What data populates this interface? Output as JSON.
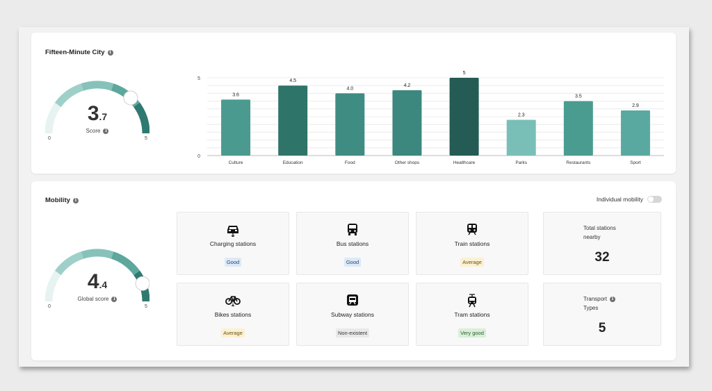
{
  "fifteen": {
    "title": "Fifteen-Minute City",
    "score_int": "3",
    "score_dec": ".7",
    "score": 3.7,
    "score_label": "Score",
    "min_label": "0",
    "max_label": "5"
  },
  "mobility": {
    "title": "Mobility",
    "toggle_label": "Individual mobility",
    "toggle_on": false,
    "score_int": "4",
    "score_dec": ".4",
    "score": 4.4,
    "score_label": "Global score",
    "min_label": "0",
    "max_label": "5",
    "tiles": [
      {
        "name": "charging",
        "label": "Charging stations",
        "status": "Good",
        "icon": "car-charging-icon"
      },
      {
        "name": "bus",
        "label": "Bus stations",
        "status": "Good",
        "icon": "bus-icon"
      },
      {
        "name": "train",
        "label": "Train stations",
        "status": "Average",
        "icon": "train-icon"
      },
      {
        "name": "bikes",
        "label": "Bikes stations",
        "status": "Average",
        "icon": "bicycle-icon"
      },
      {
        "name": "subway",
        "label": "Subway stations",
        "status": "Non-existent",
        "icon": "subway-icon"
      },
      {
        "name": "tram",
        "label": "Tram stations",
        "status": "Very good",
        "icon": "tram-icon"
      }
    ],
    "total_stations": {
      "title_line1": "Total stations",
      "title_line2": "nearby",
      "value": "32"
    },
    "transport_types": {
      "title_line1": "Transport",
      "title_line2": "Types",
      "value": "5"
    }
  },
  "status_colors": {
    "Good": {
      "bg": "#dce9f7",
      "fg": "#2b4a6f"
    },
    "Average": {
      "bg": "#fbf0d2",
      "fg": "#6b5412"
    },
    "Non-existent": {
      "bg": "#e9e9e9",
      "fg": "#333333"
    },
    "Very good": {
      "bg": "#d9efd9",
      "fg": "#2c5e2c"
    }
  },
  "chart_data": {
    "type": "bar",
    "categories": [
      "Culture",
      "Education",
      "Food",
      "Other shops",
      "Healthcare",
      "Parks",
      "Restaurants",
      "Sport"
    ],
    "values": [
      3.6,
      4.5,
      4.0,
      4.2,
      5,
      2.3,
      3.5,
      2.9
    ],
    "value_labels": [
      "3.6",
      "4.5",
      "4.0",
      "4.2",
      "5",
      "2.3",
      "3.5",
      "2.9"
    ],
    "colors": [
      "#4a9a8f",
      "#2f7468",
      "#3f8c82",
      "#3c887e",
      "#245b54",
      "#79bfb8",
      "#4b9c90",
      "#5aa9a0"
    ],
    "ylim": [
      0,
      5
    ],
    "yticks": [
      0,
      5
    ],
    "grid": true,
    "title": "",
    "xlabel": "",
    "ylabel": ""
  }
}
